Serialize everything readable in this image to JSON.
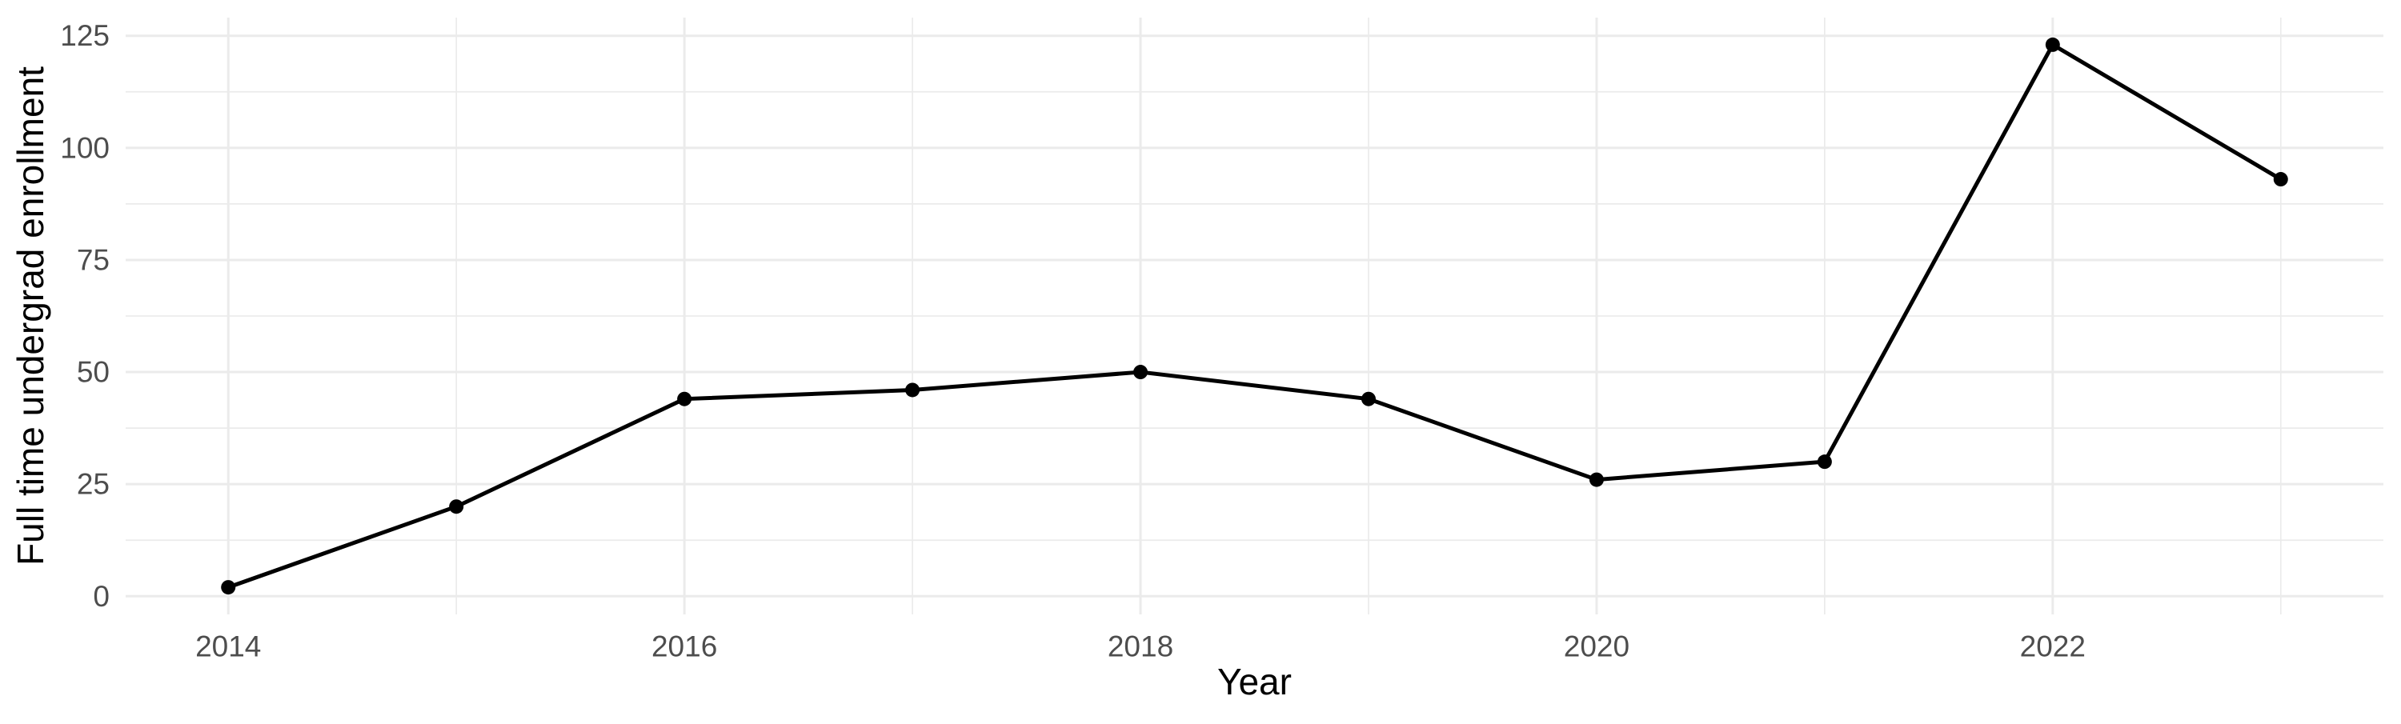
{
  "chart_data": {
    "type": "line",
    "title": "",
    "xlabel": "Year",
    "ylabel": "Full time undergrad enrollment",
    "x": [
      2014,
      2015,
      2016,
      2017,
      2018,
      2019,
      2020,
      2021,
      2022,
      2023
    ],
    "values": [
      2,
      20,
      44,
      46,
      50,
      44,
      26,
      30,
      123,
      93
    ],
    "x_ticks": [
      2014,
      2016,
      2018,
      2020,
      2022
    ],
    "y_ticks": [
      0,
      25,
      50,
      75,
      100,
      125
    ],
    "xlim": [
      2013.55,
      2023.45
    ],
    "ylim": [
      -4.05,
      129.05
    ],
    "grid": "major+minor",
    "legend": "none",
    "marker": "point",
    "colors": {
      "line": "#000000",
      "point": "#000000",
      "grid_major": "#ebebeb",
      "grid_minor": "#ebebeb",
      "tick_label": "#4d4d4d",
      "axis_title": "#000000",
      "background": "#ffffff"
    }
  }
}
